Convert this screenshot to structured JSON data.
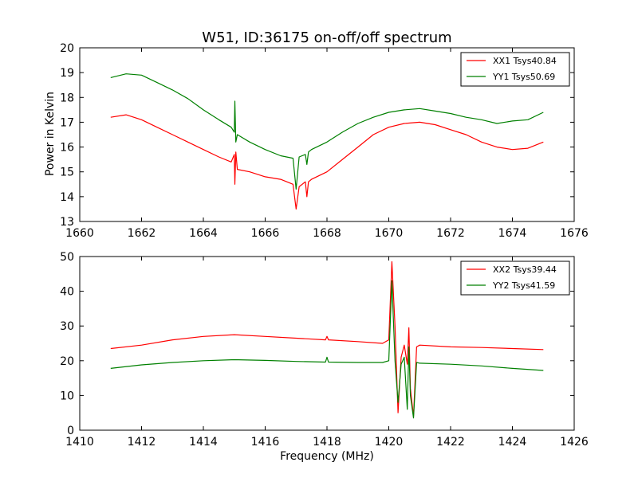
{
  "figure": {
    "title": "W51, ID:36175 on-off/off spectrum",
    "ylabel": "Power in Kelvin",
    "xlabel": "Frequency (MHz)"
  },
  "chart_data": [
    {
      "type": "line",
      "title": "W51, ID:36175 on-off/off spectrum",
      "xlabel": "",
      "ylabel": "Power in Kelvin",
      "xlim": [
        1660,
        1676
      ],
      "ylim": [
        13,
        20
      ],
      "xticks": [
        1660,
        1662,
        1664,
        1666,
        1668,
        1670,
        1672,
        1674,
        1676
      ],
      "yticks": [
        13,
        14,
        15,
        16,
        17,
        18,
        19,
        20
      ],
      "legend_position": "top-right",
      "series": [
        {
          "name": "XX1 Tsys40.84",
          "color": "#ff0000",
          "x": [
            1661.0,
            1661.5,
            1662.0,
            1662.5,
            1663.0,
            1663.5,
            1664.0,
            1664.5,
            1664.9,
            1665.0,
            1665.02,
            1665.05,
            1665.1,
            1665.5,
            1666.0,
            1666.5,
            1666.9,
            1667.0,
            1667.1,
            1667.3,
            1667.35,
            1667.4,
            1667.5,
            1668.0,
            1668.5,
            1669.0,
            1669.5,
            1670.0,
            1670.5,
            1671.0,
            1671.5,
            1672.0,
            1672.5,
            1673.0,
            1673.5,
            1674.0,
            1674.5,
            1675.0
          ],
          "y": [
            17.2,
            17.3,
            17.1,
            16.8,
            16.5,
            16.2,
            15.9,
            15.6,
            15.4,
            15.7,
            14.5,
            15.8,
            15.1,
            15.0,
            14.8,
            14.7,
            14.5,
            13.5,
            14.4,
            14.6,
            14.0,
            14.6,
            14.7,
            15.0,
            15.5,
            16.0,
            16.5,
            16.8,
            16.95,
            17.0,
            16.9,
            16.7,
            16.5,
            16.2,
            16.0,
            15.9,
            15.95,
            16.2
          ]
        },
        {
          "name": "YY1 Tsys50.69",
          "color": "#008000",
          "x": [
            1661.0,
            1661.5,
            1662.0,
            1662.5,
            1663.0,
            1663.5,
            1664.0,
            1664.5,
            1664.9,
            1665.0,
            1665.02,
            1665.05,
            1665.1,
            1665.5,
            1666.0,
            1666.5,
            1666.9,
            1667.0,
            1667.1,
            1667.3,
            1667.35,
            1667.4,
            1667.5,
            1668.0,
            1668.5,
            1669.0,
            1669.5,
            1670.0,
            1670.5,
            1671.0,
            1671.5,
            1672.0,
            1672.5,
            1673.0,
            1673.5,
            1674.0,
            1674.5,
            1675.0
          ],
          "y": [
            18.8,
            18.95,
            18.9,
            18.6,
            18.3,
            17.95,
            17.5,
            17.1,
            16.8,
            16.6,
            17.85,
            16.2,
            16.5,
            16.2,
            15.9,
            15.65,
            15.55,
            14.3,
            15.6,
            15.7,
            15.3,
            15.8,
            15.9,
            16.2,
            16.6,
            16.95,
            17.2,
            17.4,
            17.5,
            17.55,
            17.45,
            17.35,
            17.2,
            17.1,
            16.95,
            17.05,
            17.1,
            17.4
          ]
        }
      ]
    },
    {
      "type": "line",
      "title": "",
      "xlabel": "Frequency (MHz)",
      "ylabel": "",
      "xlim": [
        1410,
        1426
      ],
      "ylim": [
        0,
        50
      ],
      "xticks": [
        1410,
        1412,
        1414,
        1416,
        1418,
        1420,
        1422,
        1424,
        1426
      ],
      "yticks": [
        0,
        10,
        20,
        30,
        40,
        50
      ],
      "legend_position": "top-right",
      "series": [
        {
          "name": "XX2 Tsys39.44",
          "color": "#ff0000",
          "x": [
            1411.0,
            1412.0,
            1413.0,
            1414.0,
            1415.0,
            1416.0,
            1417.0,
            1417.95,
            1418.0,
            1418.05,
            1419.0,
            1419.8,
            1420.0,
            1420.1,
            1420.2,
            1420.3,
            1420.4,
            1420.5,
            1420.6,
            1420.65,
            1420.7,
            1420.8,
            1420.9,
            1421.0,
            1422.0,
            1423.0,
            1424.0,
            1425.0
          ],
          "y": [
            23.5,
            24.5,
            26.0,
            27.0,
            27.5,
            27.0,
            26.5,
            26.0,
            27.0,
            26.0,
            25.5,
            25.0,
            26.0,
            48.5,
            30.0,
            5.0,
            21.0,
            24.5,
            19.0,
            29.5,
            12.0,
            4.0,
            24.0,
            24.5,
            24.0,
            23.8,
            23.5,
            23.2
          ]
        },
        {
          "name": "YY2 Tsys41.59",
          "color": "#008000",
          "x": [
            1411.0,
            1412.0,
            1413.0,
            1414.0,
            1415.0,
            1416.0,
            1417.0,
            1417.95,
            1418.0,
            1418.05,
            1419.0,
            1419.8,
            1420.0,
            1420.1,
            1420.2,
            1420.3,
            1420.4,
            1420.5,
            1420.6,
            1420.65,
            1420.7,
            1420.8,
            1420.9,
            1421.0,
            1422.0,
            1423.0,
            1424.0,
            1425.0
          ],
          "y": [
            17.8,
            18.8,
            19.5,
            20.0,
            20.3,
            20.1,
            19.8,
            19.6,
            21.0,
            19.6,
            19.5,
            19.5,
            20.0,
            43.0,
            20.0,
            8.0,
            19.0,
            21.0,
            6.0,
            24.0,
            10.0,
            3.5,
            19.5,
            19.3,
            19.0,
            18.5,
            17.8,
            17.2
          ]
        }
      ]
    }
  ]
}
